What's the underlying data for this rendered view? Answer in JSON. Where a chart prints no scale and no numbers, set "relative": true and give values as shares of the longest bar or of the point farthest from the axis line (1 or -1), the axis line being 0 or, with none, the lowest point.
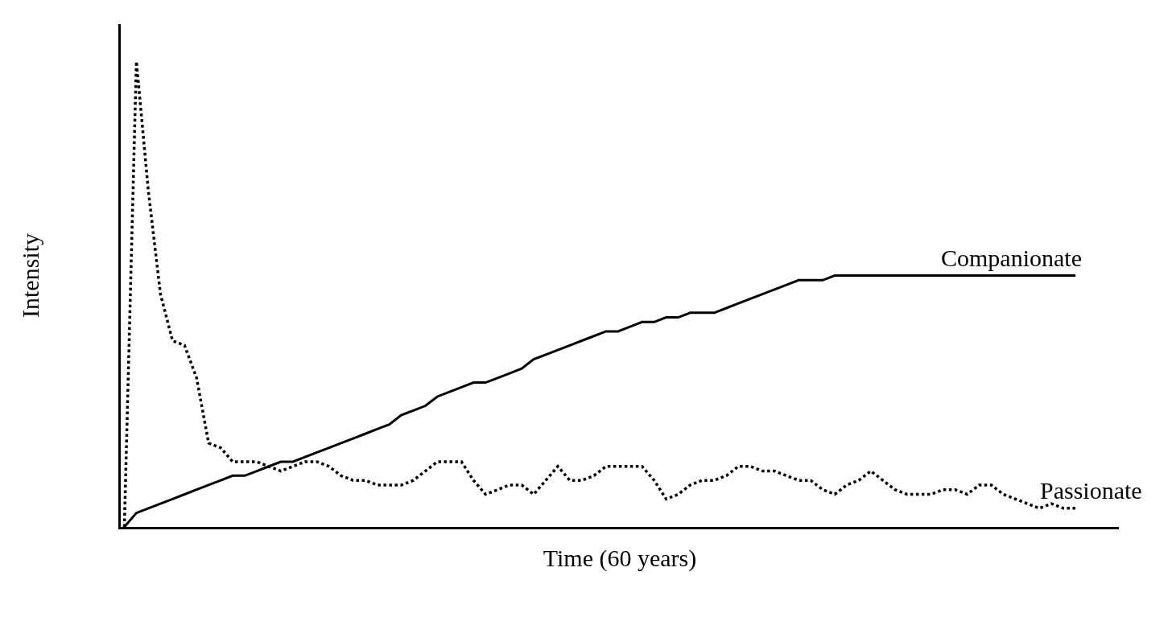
{
  "chart_data": {
    "type": "line",
    "relative": true,
    "xlabel": "Time (60 years)",
    "ylabel": "Intensity",
    "legend": false,
    "marker": "none",
    "categories": [
      null,
      null,
      null,
      null,
      null,
      null,
      null,
      null,
      null,
      null,
      null,
      null,
      null,
      null,
      null,
      null,
      null,
      null,
      null,
      null,
      null,
      null,
      null,
      null,
      null,
      null,
      null,
      null,
      null,
      null,
      null,
      null,
      null,
      null,
      null,
      null,
      null,
      null,
      null,
      null,
      null,
      null,
      null,
      null,
      null,
      null,
      null,
      null,
      null,
      null,
      null,
      null,
      null,
      null,
      null,
      null,
      null,
      null,
      null,
      null,
      null,
      null,
      null,
      null,
      null,
      null,
      null,
      null,
      null,
      null,
      null,
      null,
      null,
      null,
      null,
      null,
      null,
      null,
      null,
      null
    ],
    "series": [
      {
        "name": "Companionate",
        "color": "#000000",
        "line_style": "solid",
        "values": [
          0,
          0.03,
          0.04,
          0.05,
          0.06,
          0.07,
          0.08,
          0.09,
          0.1,
          0.11,
          0.11,
          0.12,
          0.13,
          0.14,
          0.14,
          0.15,
          0.16,
          0.17,
          0.18,
          0.19,
          0.2,
          0.21,
          0.22,
          0.24,
          0.25,
          0.26,
          0.28,
          0.29,
          0.3,
          0.31,
          0.31,
          0.32,
          0.33,
          0.34,
          0.36,
          0.37,
          0.38,
          0.39,
          0.4,
          0.41,
          0.42,
          0.42,
          0.43,
          0.44,
          0.44,
          0.45,
          0.45,
          0.46,
          0.46,
          0.46,
          0.47,
          0.48,
          0.49,
          0.5,
          0.51,
          0.52,
          0.53,
          0.53,
          0.53,
          0.54,
          0.54,
          0.54,
          0.54,
          0.54,
          0.54,
          0.54,
          0.54,
          0.54,
          0.54,
          0.54,
          0.54,
          0.54,
          0.54,
          0.54,
          0.54,
          0.54,
          0.54,
          0.54,
          0.54,
          0.54
        ]
      },
      {
        "name": "Passionate",
        "color": "#000000",
        "line_style": "dotted",
        "values": [
          0,
          1,
          0.72,
          0.5,
          0.4,
          0.39,
          0.32,
          0.18,
          0.17,
          0.14,
          0.14,
          0.14,
          0.13,
          0.12,
          0.13,
          0.14,
          0.14,
          0.13,
          0.11,
          0.1,
          0.1,
          0.09,
          0.09,
          0.09,
          0.1,
          0.12,
          0.14,
          0.14,
          0.14,
          0.1,
          0.07,
          0.08,
          0.09,
          0.09,
          0.07,
          0.1,
          0.13,
          0.1,
          0.1,
          0.11,
          0.13,
          0.13,
          0.13,
          0.13,
          0.1,
          0.06,
          0.07,
          0.09,
          0.1,
          0.1,
          0.11,
          0.13,
          0.13,
          0.12,
          0.12,
          0.11,
          0.1,
          0.1,
          0.08,
          0.07,
          0.09,
          0.1,
          0.12,
          0.1,
          0.08,
          0.07,
          0.07,
          0.07,
          0.08,
          0.08,
          0.07,
          0.09,
          0.09,
          0.07,
          0.06,
          0.05,
          0.04,
          0.05,
          0.04,
          0.04
        ]
      }
    ]
  }
}
